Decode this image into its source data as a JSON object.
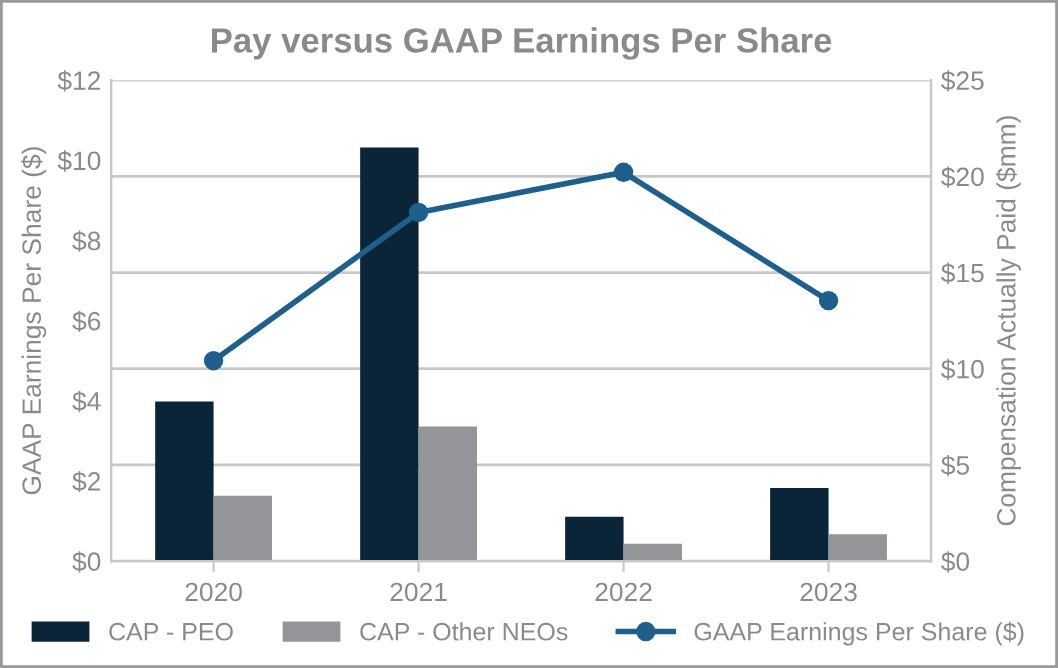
{
  "chart_data": {
    "type": "bar",
    "title": "Pay versus GAAP Earnings Per Share",
    "ylabel": "GAAP Earnings Per Share ($)",
    "y2label": "Compensation Actually Paid ($mm)",
    "categories": [
      "2020",
      "2021",
      "2022",
      "2023"
    ],
    "series": [
      {
        "name": "CAP - PEO",
        "axis": "y2",
        "color": "#0b2538",
        "values": [
          8.3,
          21.5,
          2.3,
          3.8
        ]
      },
      {
        "name": "CAP - Other NEOs",
        "axis": "y2",
        "color": "#939598",
        "values": [
          3.4,
          7.0,
          0.9,
          1.4
        ]
      },
      {
        "name": "GAAP Earnings Per Share ($)",
        "type": "line",
        "axis": "y",
        "color": "#1f5f8b",
        "marker": "circle",
        "line_style": "solid",
        "values": [
          5.0,
          8.7,
          9.7,
          6.5
        ]
      }
    ],
    "ylim": [
      0,
      12
    ],
    "yticks": [
      {
        "value": 0,
        "label": "$0"
      },
      {
        "value": 2,
        "label": "$2"
      },
      {
        "value": 4,
        "label": "$4"
      },
      {
        "value": 6,
        "label": "$6"
      },
      {
        "value": 8,
        "label": "$8"
      },
      {
        "value": 10,
        "label": "$10"
      },
      {
        "value": 12,
        "label": "$12"
      }
    ],
    "y2lim": [
      0,
      25
    ],
    "y2ticks": [
      {
        "value": 0,
        "label": "$0"
      },
      {
        "value": 5,
        "label": "$5"
      },
      {
        "value": 10,
        "label": "$10"
      },
      {
        "value": 15,
        "label": "$15"
      },
      {
        "value": 20,
        "label": "$20"
      },
      {
        "value": 25,
        "label": "$25"
      }
    ],
    "grid": "y",
    "legend": "bottom"
  }
}
